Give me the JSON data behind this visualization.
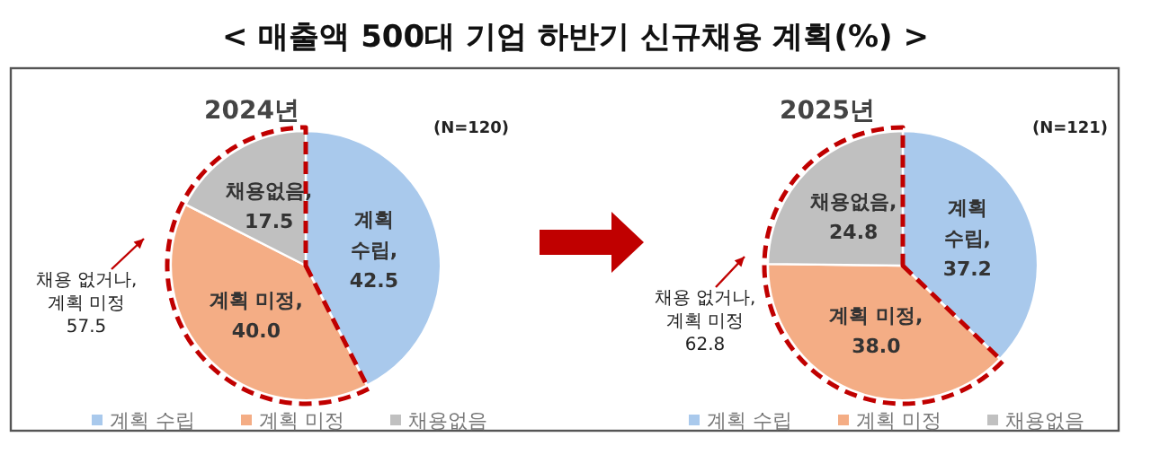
{
  "chart_data": [
    {
      "type": "pie",
      "title": "< 매출액 500대 기업 하반기 신규채용 계획(%) >",
      "subtitle": "2024년",
      "categories": [
        "계획 수립",
        "계획 미정",
        "채용없음"
      ],
      "values": [
        42.5,
        40.0,
        17.5
      ],
      "colors": [
        "#a9c9ec",
        "#f4ad85",
        "#c0c0c0"
      ],
      "value_labels": [
        "계획\n수립,\n42.5",
        "계획 미정,\n40.0",
        "채용없음,\n17.5"
      ],
      "legend": "bottom",
      "annotations": [
        "(N=120)",
        "채용 없거나,\n계획 미정\n57.5"
      ]
    },
    {
      "type": "pie",
      "subtitle": "2025년",
      "categories": [
        "계획 수립",
        "계획 미정",
        "채용없음"
      ],
      "values": [
        37.2,
        38.0,
        24.8
      ],
      "colors": [
        "#a9c9ec",
        "#f4ad85",
        "#c0c0c0"
      ],
      "value_labels": [
        "계획\n수립,\n37.2",
        "계획 미정,\n38.0",
        "채용없음,\n24.8"
      ],
      "legend": "bottom",
      "annotations": [
        "(N=121)",
        "채용 없거나,\n계획 미정\n62.8"
      ]
    }
  ]
}
